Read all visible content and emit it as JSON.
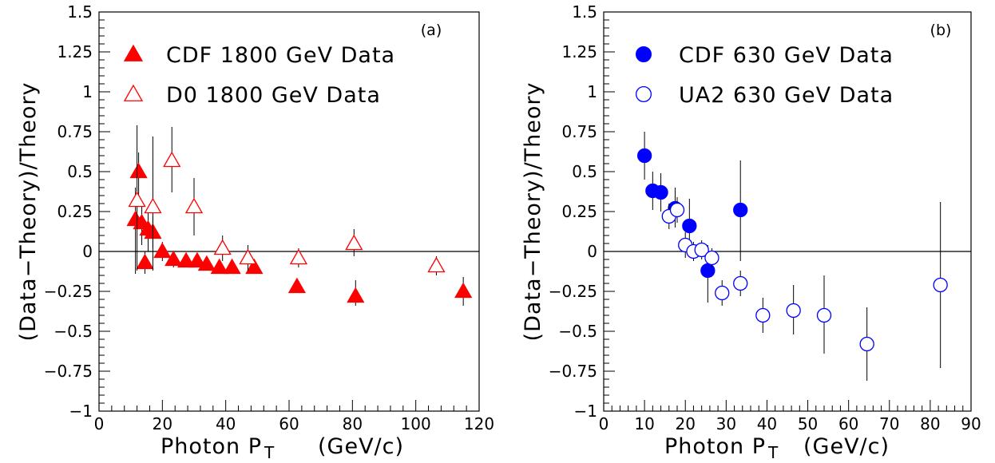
{
  "chart_data": [
    {
      "type": "scatter",
      "panel_label": "(a)",
      "xlabel": "Photon P",
      "xlabel_sub": "T",
      "xlabel_units": "(GeV/c)",
      "ylabel": "(Data−Theory)/Theory",
      "xlim": [
        0,
        120
      ],
      "ylim": [
        -1,
        1.5
      ],
      "x_ticks": [
        0,
        20,
        40,
        60,
        80,
        100,
        120
      ],
      "y_ticks": [
        -1,
        -0.75,
        -0.5,
        -0.25,
        0,
        0.25,
        0.5,
        0.75,
        1,
        1.25,
        1.5
      ],
      "y_tick_labels": [
        "−1",
        "−0.75",
        "−0.5",
        "−0.25",
        "0",
        "0.25",
        "0.5",
        "0.75",
        "1",
        "1.25",
        "1.5"
      ],
      "reference_line_y": 0,
      "legend_position": "top-left",
      "series": [
        {
          "name": "CDF 1800 GeV Data",
          "marker": "filled-triangle",
          "color": "#ff0000",
          "points": [
            {
              "x": 11.5,
              "y": 0.2,
              "lo": -0.14,
              "hi": 0.4
            },
            {
              "x": 12.5,
              "y": 0.5,
              "lo": 0.3,
              "hi": 0.62
            },
            {
              "x": 13.5,
              "y": 0.18,
              "lo": 0.04,
              "hi": 0.32
            },
            {
              "x": 14.5,
              "y": -0.07,
              "lo": -0.14,
              "hi": 0.0
            },
            {
              "x": 15.5,
              "y": 0.14,
              "lo": 0.0,
              "hi": 0.26
            },
            {
              "x": 17.0,
              "y": 0.12,
              "lo": 0.02,
              "hi": 0.22
            },
            {
              "x": 20.0,
              "y": 0.0,
              "lo": -0.06,
              "hi": 0.06
            },
            {
              "x": 23.5,
              "y": -0.05,
              "lo": -0.1,
              "hi": 0.0
            },
            {
              "x": 27.5,
              "y": -0.06,
              "lo": -0.1,
              "hi": -0.02
            },
            {
              "x": 31.0,
              "y": -0.06,
              "lo": -0.1,
              "hi": -0.02
            },
            {
              "x": 34.0,
              "y": -0.08,
              "lo": -0.12,
              "hi": -0.04
            },
            {
              "x": 38.0,
              "y": -0.1,
              "lo": -0.14,
              "hi": -0.06
            },
            {
              "x": 42.0,
              "y": -0.1,
              "lo": -0.14,
              "hi": -0.06
            },
            {
              "x": 49.0,
              "y": -0.1,
              "lo": -0.14,
              "hi": -0.06
            },
            {
              "x": 62.5,
              "y": -0.22,
              "lo": -0.26,
              "hi": -0.18
            },
            {
              "x": 81.0,
              "y": -0.28,
              "lo": -0.34,
              "hi": -0.18
            },
            {
              "x": 115.0,
              "y": -0.25,
              "lo": -0.34,
              "hi": -0.16
            }
          ]
        },
        {
          "name": "D0 1800 GeV Data",
          "marker": "open-triangle",
          "color": "#ff0000",
          "points": [
            {
              "x": 12.0,
              "y": 0.32,
              "lo": -0.12,
              "hi": 0.79
            },
            {
              "x": 17.0,
              "y": 0.28,
              "lo": -0.12,
              "hi": 0.72
            },
            {
              "x": 23.0,
              "y": 0.57,
              "lo": 0.37,
              "hi": 0.78
            },
            {
              "x": 30.0,
              "y": 0.28,
              "lo": 0.1,
              "hi": 0.46
            },
            {
              "x": 39.0,
              "y": 0.02,
              "lo": -0.06,
              "hi": 0.1
            },
            {
              "x": 47.0,
              "y": -0.04,
              "lo": -0.12,
              "hi": 0.04
            },
            {
              "x": 63.0,
              "y": -0.04,
              "lo": -0.1,
              "hi": 0.02
            },
            {
              "x": 80.5,
              "y": 0.05,
              "lo": -0.03,
              "hi": 0.14
            },
            {
              "x": 106.5,
              "y": -0.09,
              "lo": -0.15,
              "hi": -0.03
            }
          ]
        }
      ]
    },
    {
      "type": "scatter",
      "panel_label": "(b)",
      "xlabel": "Photon P",
      "xlabel_sub": "T",
      "xlabel_units": "(GeV/c)",
      "ylabel": "(Data−Theory)/Theory",
      "xlim": [
        0,
        90
      ],
      "ylim": [
        -1,
        1.5
      ],
      "x_ticks": [
        0,
        10,
        20,
        30,
        40,
        50,
        60,
        70,
        80,
        90
      ],
      "y_ticks": [
        -1,
        -0.75,
        -0.5,
        -0.25,
        0,
        0.25,
        0.5,
        0.75,
        1,
        1.25,
        1.5
      ],
      "y_tick_labels": [
        "−1",
        "−0.75",
        "−0.5",
        "−0.25",
        "0",
        "0.25",
        "0.5",
        "0.75",
        "1",
        "1.25",
        "1.5"
      ],
      "reference_line_y": 0,
      "legend_position": "top-left",
      "series": [
        {
          "name": "CDF 630 GeV Data",
          "marker": "filled-circle",
          "color": "#0000ff",
          "points": [
            {
              "x": 10.0,
              "y": 0.6,
              "lo": 0.45,
              "hi": 0.75
            },
            {
              "x": 12.0,
              "y": 0.38,
              "lo": 0.26,
              "hi": 0.5
            },
            {
              "x": 14.0,
              "y": 0.37,
              "lo": 0.25,
              "hi": 0.49
            },
            {
              "x": 17.5,
              "y": 0.27,
              "lo": 0.15,
              "hi": 0.4
            },
            {
              "x": 21.0,
              "y": 0.16,
              "lo": 0.02,
              "hi": 0.33
            },
            {
              "x": 25.5,
              "y": -0.12,
              "lo": -0.32,
              "hi": 0.04
            },
            {
              "x": 33.5,
              "y": 0.26,
              "lo": -0.06,
              "hi": 0.57
            }
          ]
        },
        {
          "name": "UA2 630 GeV Data",
          "marker": "open-circle",
          "color": "#0000ff",
          "points": [
            {
              "x": 16.0,
              "y": 0.22,
              "lo": 0.14,
              "hi": 0.3
            },
            {
              "x": 18.0,
              "y": 0.26,
              "lo": 0.18,
              "hi": 0.34
            },
            {
              "x": 20.0,
              "y": 0.04,
              "lo": -0.04,
              "hi": 0.12
            },
            {
              "x": 22.0,
              "y": 0.0,
              "lo": -0.06,
              "hi": 0.06
            },
            {
              "x": 24.0,
              "y": 0.01,
              "lo": -0.05,
              "hi": 0.07
            },
            {
              "x": 26.5,
              "y": -0.04,
              "lo": -0.1,
              "hi": 0.02
            },
            {
              "x": 29.0,
              "y": -0.26,
              "lo": -0.34,
              "hi": -0.18
            },
            {
              "x": 33.5,
              "y": -0.2,
              "lo": -0.28,
              "hi": -0.12
            },
            {
              "x": 39.0,
              "y": -0.4,
              "lo": -0.51,
              "hi": -0.29
            },
            {
              "x": 46.5,
              "y": -0.37,
              "lo": -0.52,
              "hi": -0.21
            },
            {
              "x": 54.0,
              "y": -0.4,
              "lo": -0.64,
              "hi": -0.15
            },
            {
              "x": 64.5,
              "y": -0.58,
              "lo": -0.81,
              "hi": -0.35
            },
            {
              "x": 82.5,
              "y": -0.21,
              "lo": -0.73,
              "hi": 0.31
            }
          ]
        }
      ]
    }
  ]
}
